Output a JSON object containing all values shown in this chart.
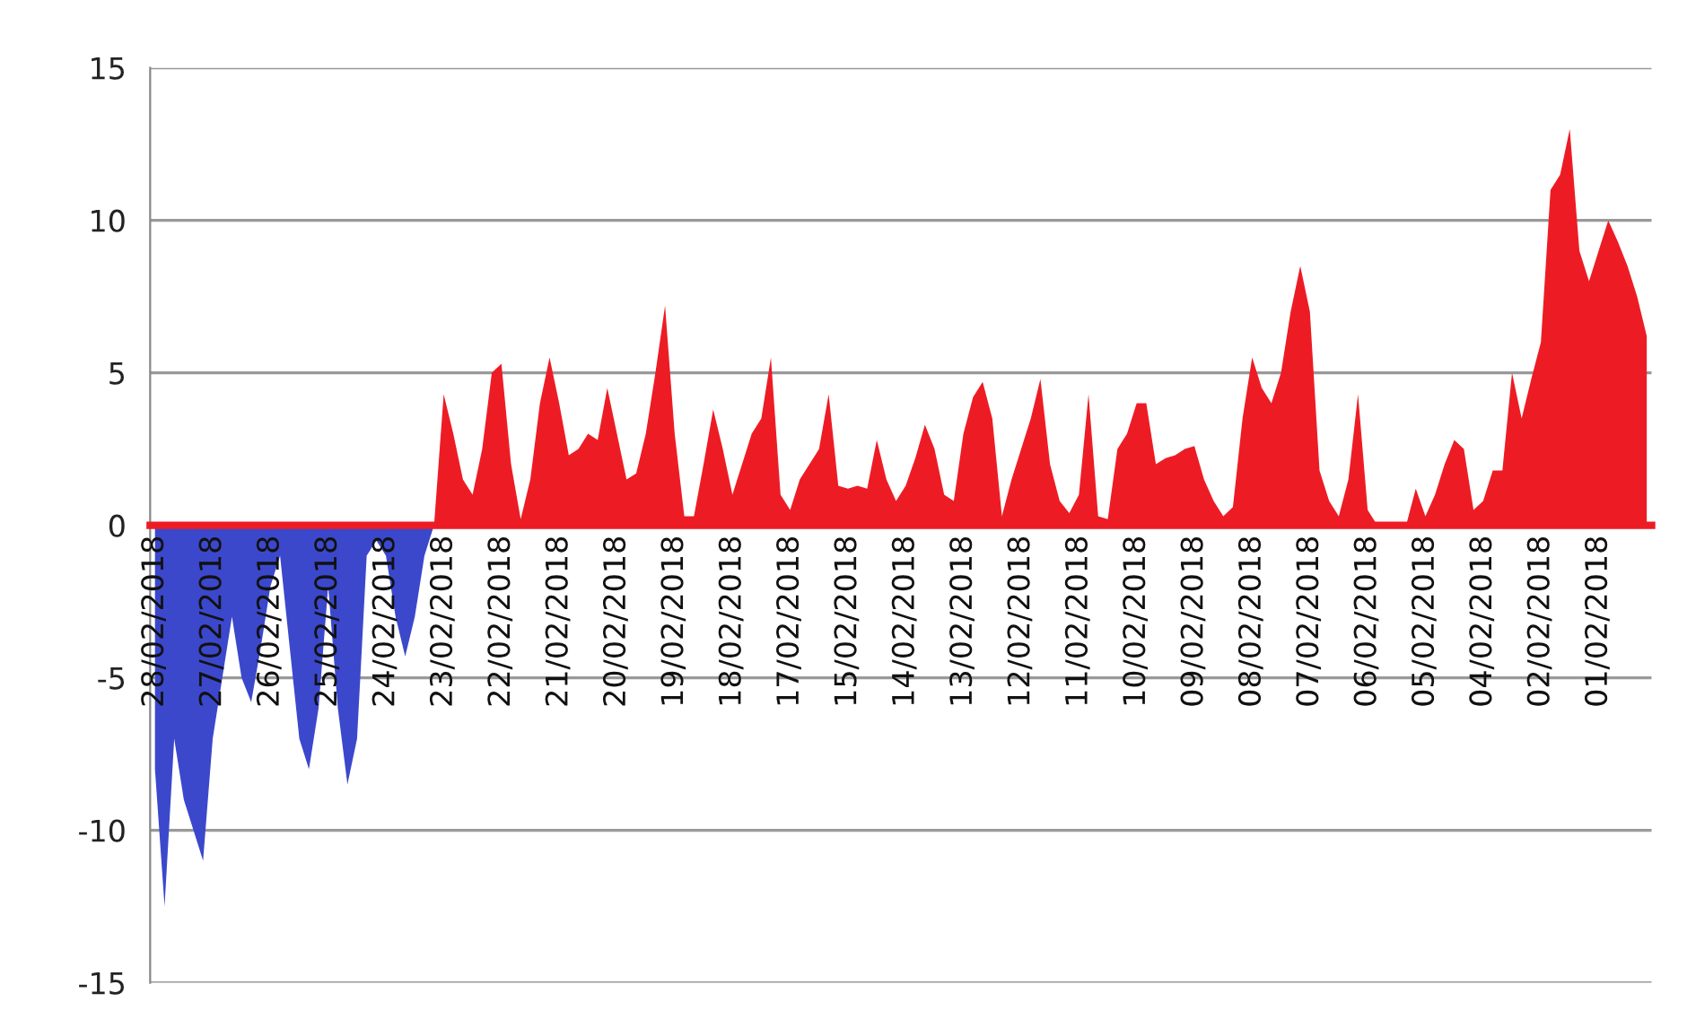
{
  "chart_data": {
    "type": "area",
    "categories": [
      "28/02/2018",
      null,
      null,
      null,
      null,
      null,
      "27/02/2018",
      null,
      null,
      null,
      null,
      null,
      "26/02/2018",
      null,
      null,
      null,
      null,
      null,
      "25/02/2018",
      null,
      null,
      null,
      null,
      null,
      "24/02/2018",
      null,
      null,
      null,
      null,
      null,
      "23/02/2018",
      null,
      null,
      null,
      null,
      null,
      "22/02/2018",
      null,
      null,
      null,
      null,
      null,
      "21/02/2018",
      null,
      null,
      null,
      null,
      null,
      "20/02/2018",
      null,
      null,
      null,
      null,
      null,
      "19/02/2018",
      null,
      null,
      null,
      null,
      null,
      "18/02/2018",
      null,
      null,
      null,
      null,
      null,
      "17/02/2018",
      null,
      null,
      null,
      null,
      null,
      "15/02/2018",
      null,
      null,
      null,
      null,
      null,
      "14/02/2018",
      null,
      null,
      null,
      null,
      null,
      "13/02/2018",
      null,
      null,
      null,
      null,
      null,
      "12/02/2018",
      null,
      null,
      null,
      null,
      null,
      "11/02/2018",
      null,
      null,
      null,
      null,
      null,
      "10/02/2018",
      null,
      null,
      null,
      null,
      null,
      "09/02/2018",
      null,
      null,
      null,
      null,
      null,
      "08/02/2018",
      null,
      null,
      null,
      null,
      null,
      "07/02/2018",
      null,
      null,
      null,
      null,
      null,
      "06/02/2018",
      null,
      null,
      null,
      null,
      null,
      "05/02/2018",
      null,
      null,
      null,
      null,
      null,
      "04/02/2018",
      null,
      null,
      null,
      null,
      null,
      "02/02/2018",
      null,
      null,
      null,
      null,
      null,
      "01/02/2018",
      null,
      null,
      null,
      null,
      null
    ],
    "series": [
      {
        "color": "#ed1c24",
        "values": [
          0,
          0,
          0,
          0,
          0,
          0,
          0,
          0,
          0,
          0,
          0,
          0,
          0,
          0,
          0,
          0,
          0,
          0,
          0,
          0,
          0,
          0,
          0,
          0,
          0,
          0,
          0,
          0,
          0,
          0,
          4.3,
          3,
          1.5,
          1,
          2.5,
          5,
          5.3,
          2,
          0.2,
          1.5,
          4,
          5.5,
          4,
          2.3,
          2.5,
          3,
          2.8,
          4.5,
          3,
          1.5,
          1.7,
          3,
          5,
          7.2,
          3,
          0.3,
          0.3,
          2,
          3.8,
          2.5,
          1,
          2,
          3,
          3.5,
          5.5,
          1,
          0.5,
          1.5,
          2,
          2.5,
          4.3,
          1.3,
          1.2,
          1.3,
          1.2,
          2.8,
          1.5,
          0.8,
          1.3,
          2.2,
          3.3,
          2.5,
          1,
          0.8,
          3,
          4.2,
          4.7,
          3.5,
          0.3,
          1.5,
          2.5,
          3.5,
          4.8,
          2,
          0.8,
          0.4,
          1,
          4.3,
          0.3,
          0.2,
          2.5,
          3,
          4,
          4,
          2,
          2.2,
          2.3,
          2.5,
          2.6,
          1.5,
          0.8,
          0.3,
          0.6,
          3.5,
          5.5,
          4.5,
          4,
          5,
          7,
          8.5,
          7,
          1.8,
          0.8,
          0.3,
          1.5,
          4.3,
          0.5,
          0,
          0,
          0,
          0,
          1.2,
          0.3,
          1,
          2,
          2.8,
          2.5,
          0.5,
          0.8,
          1.8,
          1.8,
          5,
          3.5,
          4.8,
          6,
          11,
          11.5,
          13,
          9,
          8,
          9,
          10,
          9.3,
          8.5,
          7.5,
          6.2
        ]
      },
      {
        "color": "#3b48cc",
        "values": [
          -8,
          -12.5,
          -7,
          -9,
          -10,
          -11,
          -7,
          -5,
          -3,
          -5,
          -5.8,
          -4,
          -2,
          -1,
          -4,
          -7,
          -8,
          -6,
          -2,
          -6,
          -8.5,
          -7,
          -1,
          -0.5,
          -1,
          -3,
          -4.3,
          -3,
          -1,
          0,
          null,
          null,
          null,
          null,
          null,
          null,
          null,
          null,
          null,
          null,
          null,
          null,
          null,
          null,
          null,
          null,
          null,
          null,
          null,
          null,
          null,
          null,
          null,
          null,
          null,
          null,
          null,
          null,
          null,
          null,
          null,
          null,
          null,
          null,
          null,
          null,
          null,
          null,
          null,
          null,
          null,
          null,
          null,
          null,
          null,
          null,
          null,
          null,
          null,
          null,
          null,
          null,
          null,
          null,
          null,
          null,
          null,
          null,
          null,
          null,
          null,
          null,
          null,
          null,
          null,
          null,
          null,
          null,
          null,
          null,
          null,
          null,
          null,
          null,
          null,
          null,
          null,
          null,
          null,
          null,
          null,
          null,
          null,
          null,
          null,
          null,
          null,
          null,
          null,
          null,
          null,
          null,
          null,
          null,
          null,
          null,
          null,
          null,
          null,
          null,
          null,
          null,
          null,
          null,
          null,
          null,
          null,
          null,
          null,
          null,
          null,
          null,
          null,
          null,
          null,
          null,
          null,
          null,
          null,
          null,
          null,
          null,
          null,
          null,
          null,
          null
        ]
      }
    ],
    "ylim": [
      -15,
      15
    ],
    "yticks": [
      -15,
      -10,
      -5,
      0,
      5,
      10,
      15
    ],
    "grid": "y"
  }
}
